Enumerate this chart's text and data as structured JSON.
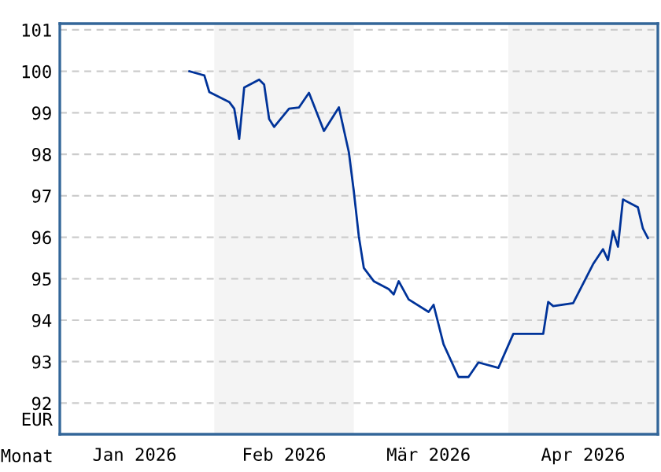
{
  "chart_data": {
    "type": "line",
    "xlabel": "Monat",
    "ylabel": "EUR",
    "x": [
      "2026-01-27",
      "2026-01-30",
      "2026-01-31",
      "2026-02-04",
      "2026-02-05",
      "2026-02-06",
      "2026-02-07",
      "2026-02-10",
      "2026-02-11",
      "2026-02-12",
      "2026-02-13",
      "2026-02-16",
      "2026-02-18",
      "2026-02-20",
      "2026-02-23",
      "2026-02-26",
      "2026-02-28",
      "2026-03-01",
      "2026-03-02",
      "2026-03-03",
      "2026-03-05",
      "2026-03-08",
      "2026-03-09",
      "2026-03-10",
      "2026-03-12",
      "2026-03-16",
      "2026-03-17",
      "2026-03-19",
      "2026-03-22",
      "2026-03-24",
      "2026-03-26",
      "2026-03-30",
      "2026-04-02",
      "2026-04-08",
      "2026-04-09",
      "2026-04-10",
      "2026-04-14",
      "2026-04-18",
      "2026-04-20",
      "2026-04-21",
      "2026-04-22",
      "2026-04-23",
      "2026-04-24",
      "2026-04-27",
      "2026-04-28",
      "2026-04-29"
    ],
    "series": [
      {
        "color": "#003399",
        "values": [
          100.0,
          99.9,
          99.5,
          99.26,
          99.1,
          98.37,
          99.61,
          99.8,
          99.68,
          98.85,
          98.66,
          99.1,
          99.13,
          99.48,
          98.56,
          99.13,
          98.05,
          97.1,
          96.02,
          95.26,
          94.94,
          94.75,
          94.62,
          94.94,
          94.5,
          94.2,
          94.37,
          93.42,
          92.63,
          92.63,
          92.98,
          92.85,
          93.67,
          93.67,
          94.44,
          94.34,
          94.41,
          95.35,
          95.71,
          95.45,
          96.15,
          95.77,
          96.91,
          96.72,
          96.21,
          95.98
        ]
      }
    ],
    "xlim": [
      "2026-01-01",
      "2026-05-01"
    ],
    "xticks": [
      {
        "value": "2026-01-16",
        "label": "Jan 2026"
      },
      {
        "value": "2026-02-15",
        "label": "Feb 2026"
      },
      {
        "value": "2026-03-16",
        "label": "Mär 2026"
      },
      {
        "value": "2026-04-16",
        "label": "Apr 2026"
      }
    ],
    "ylim": [
      91.25,
      101.15
    ],
    "yticks": [
      92,
      93,
      94,
      95,
      96,
      97,
      98,
      99,
      100,
      101
    ],
    "bands": [
      {
        "axis": "x",
        "from": "2026-02-01",
        "to": "2026-03-01",
        "color": "#f4f4f4"
      },
      {
        "axis": "x",
        "from": "2026-04-01",
        "to": "2026-05-01",
        "color": "#f4f4f4"
      }
    ],
    "grid": "y",
    "line_style": "solid",
    "marker": "none"
  }
}
